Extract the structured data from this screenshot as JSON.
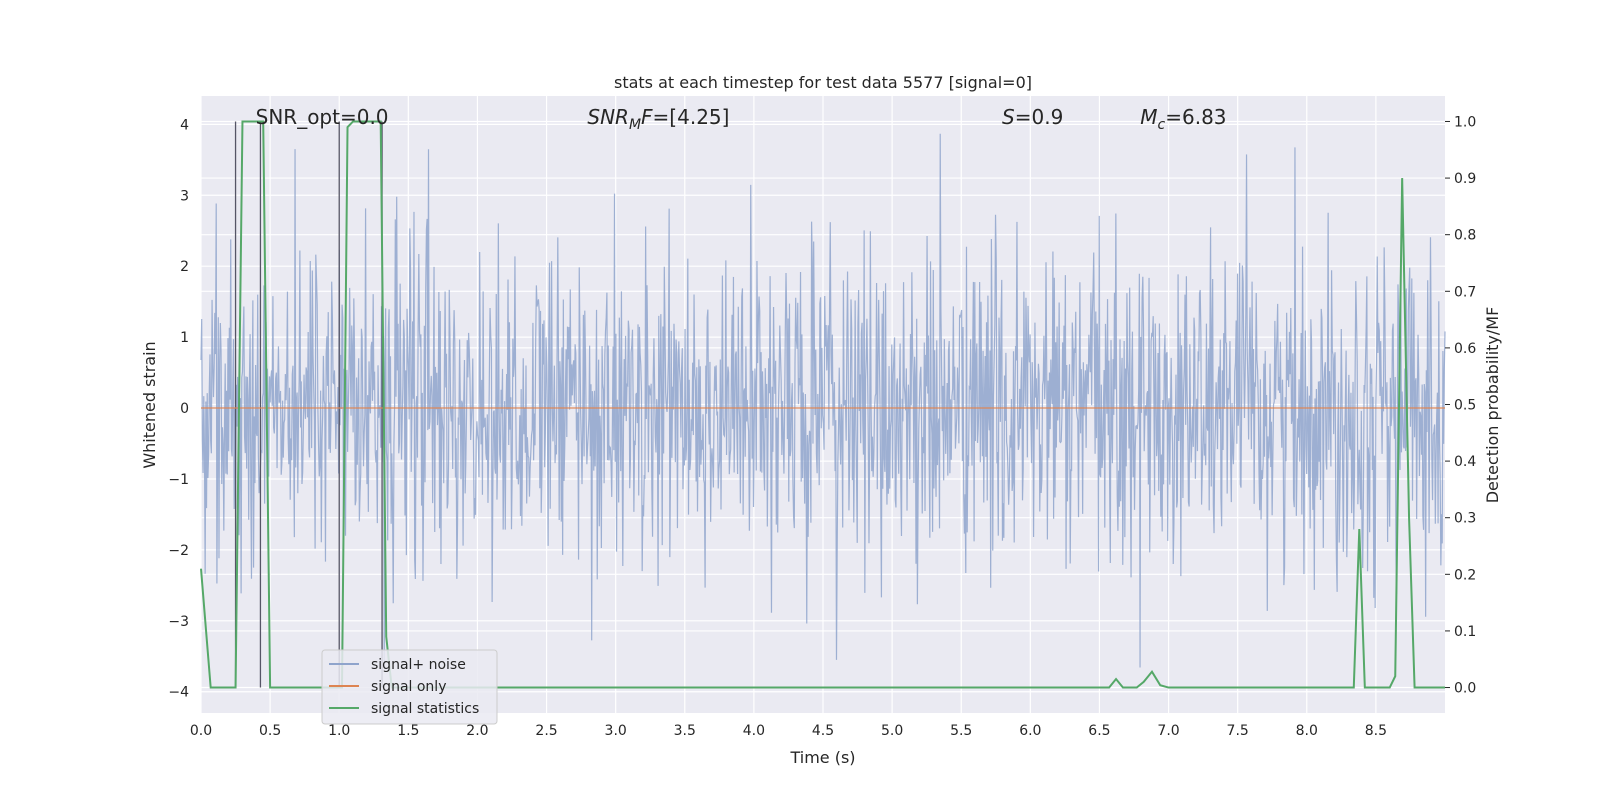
{
  "chart_data": {
    "type": "line",
    "title": "stats at each timestep for test data 5577 [signal=0]",
    "xlabel": "Time (s)",
    "ylabel_left": "Whitened strain",
    "ylabel_right": "Detection probability/MF",
    "xlim": [
      0.0,
      9.0
    ],
    "ylim_left": [
      -4.3,
      4.4
    ],
    "ylim_right": [
      -0.045,
      1.045
    ],
    "x_ticks": [
      0.0,
      0.5,
      1.0,
      1.5,
      2.0,
      2.5,
      3.0,
      3.5,
      4.0,
      4.5,
      5.0,
      5.5,
      6.0,
      6.5,
      7.0,
      7.5,
      8.0,
      8.5
    ],
    "x_tick_labels": [
      "0.0",
      "0.5",
      "1.0",
      "1.5",
      "2.0",
      "2.5",
      "3.0",
      "3.5",
      "4.0",
      "4.5",
      "5.0",
      "5.5",
      "6.0",
      "6.5",
      "7.0",
      "7.5",
      "8.0",
      "8.5"
    ],
    "y_left_ticks": [
      -4,
      -3,
      -2,
      -1,
      0,
      1,
      2,
      3,
      4
    ],
    "y_left_tick_labels": [
      "−4",
      "−3",
      "−2",
      "−1",
      "0",
      "1",
      "2",
      "3",
      "4"
    ],
    "y_right_ticks": [
      0.0,
      0.1,
      0.2,
      0.3,
      0.4,
      0.5,
      0.6,
      0.7,
      0.8,
      0.9,
      1.0
    ],
    "y_right_tick_labels": [
      "0.0",
      "0.1",
      "0.2",
      "0.3",
      "0.4",
      "0.5",
      "0.6",
      "0.7",
      "0.8",
      "0.9",
      "1.0"
    ],
    "grid": true,
    "annotations": [
      {
        "id": "snr-opt",
        "label": "SNR_opt=0.0",
        "math": false,
        "x": 0.2
      },
      {
        "id": "snr-mf",
        "label": "F=[4.25]",
        "math_prefix": "SNR",
        "math_sub": "M",
        "math": true,
        "x": 2.6
      },
      {
        "id": "s-value",
        "label": "=0.9",
        "math_prefix": "S",
        "math_sub": "",
        "math": true,
        "x": 5.6
      },
      {
        "id": "mc-value",
        "label": "=6.83",
        "math_prefix": "M",
        "math_sub": "c",
        "math": true,
        "x": 6.6
      }
    ],
    "vertical_markers_s": [
      0.25,
      0.43,
      1.0,
      1.31
    ],
    "series": [
      {
        "name": "signal+ noise",
        "color": "#8fa4cc",
        "axis": "left",
        "kind": "whitened-noise",
        "sample_count": 1800,
        "approx_std": 1.1,
        "range": [
          -3.8,
          4.0
        ]
      },
      {
        "name": "signal only",
        "color": "#dd8452",
        "axis": "left",
        "x": [
          0.0,
          9.0
        ],
        "y": [
          0.0,
          0.0
        ]
      },
      {
        "name": "signal statistics",
        "color": "#55a868",
        "axis": "right",
        "x": [
          0.0,
          0.07,
          0.12,
          0.25,
          0.3,
          0.33,
          0.43,
          0.45,
          0.5,
          0.95,
          1.0,
          1.02,
          1.06,
          1.1,
          1.3,
          1.34,
          1.38,
          1.5,
          6.5,
          6.57,
          6.62,
          6.67,
          6.71,
          6.77,
          6.82,
          6.88,
          6.94,
          7.0,
          8.3,
          8.34,
          8.38,
          8.42,
          8.46,
          8.6,
          8.64,
          8.69,
          8.74,
          8.78,
          9.0
        ],
        "y": [
          0.21,
          0.0,
          0.0,
          0.0,
          1.0,
          1.0,
          1.0,
          1.0,
          0.0,
          0.0,
          0.0,
          0.0,
          0.99,
          1.0,
          1.0,
          0.09,
          0.0,
          0.0,
          0.0,
          0.0,
          0.015,
          0.0,
          0.0,
          0.0,
          0.01,
          0.028,
          0.004,
          0.0,
          0.0,
          0.0,
          0.28,
          0.0,
          0.0,
          0.0,
          0.02,
          0.9,
          0.3,
          0.0,
          0.0
        ]
      }
    ],
    "legend": {
      "location": "lower-left",
      "entries": [
        "signal+ noise",
        "signal only",
        "signal statistics"
      ]
    }
  }
}
